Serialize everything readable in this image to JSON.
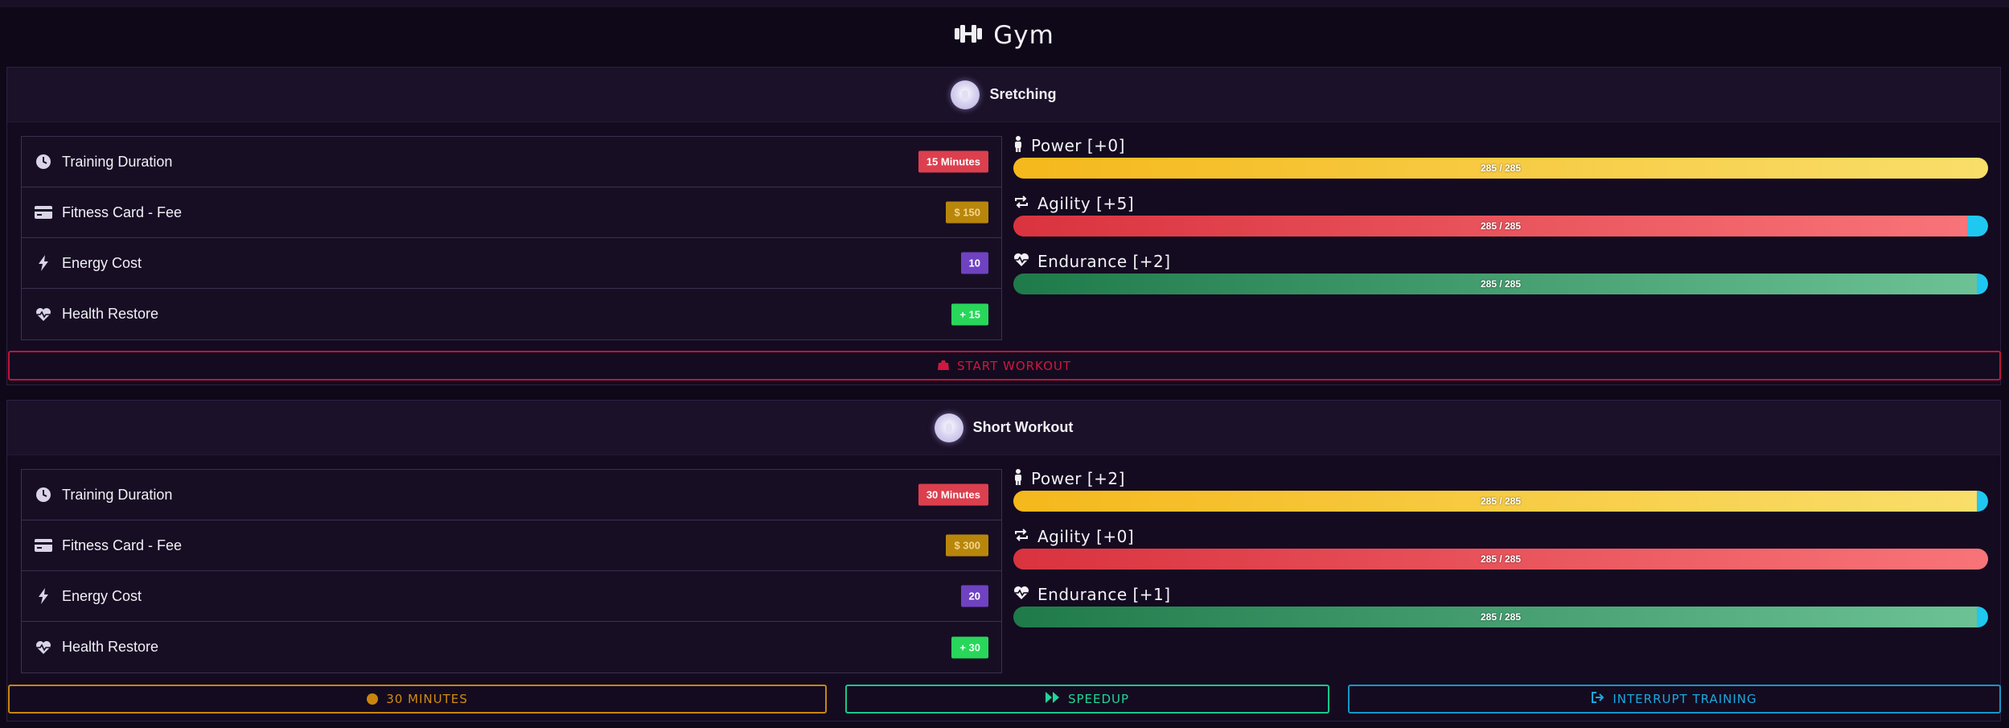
{
  "page": {
    "title": "Gym"
  },
  "sections": [
    {
      "name": "Sretching",
      "info": [
        {
          "label": "Training Duration",
          "value": "15 Minutes",
          "icon": "clock-icon",
          "color": "#dc3f4d"
        },
        {
          "label": "Fitness Card - Fee",
          "value": "$ 150",
          "icon": "credit-card-icon",
          "color": "#b8860b"
        },
        {
          "label": "Energy Cost",
          "value": "10",
          "icon": "bolt-icon",
          "color": "#6f42c1"
        },
        {
          "label": "Health Restore",
          "value": "+ 15",
          "icon": "heart-pulse-icon",
          "color": "#28d65a"
        }
      ],
      "stats": [
        {
          "label": "Power [+0]",
          "value": "285 / 285",
          "icon": "person-icon",
          "fill": 1.0,
          "bonus": 0.0
        },
        {
          "label": "Agility [+5]",
          "value": "285 / 285",
          "icon": "repeat-icon",
          "fill": 0.98,
          "bonus": 0.02
        },
        {
          "label": "Endurance [+2]",
          "value": "285 / 285",
          "icon": "heart-pulse-icon",
          "fill": 0.99,
          "bonus": 0.01
        }
      ],
      "action": {
        "label": "START WORKOUT",
        "icon": "weight-icon"
      }
    },
    {
      "name": "Short Workout",
      "info": [
        {
          "label": "Training Duration",
          "value": "30 Minutes",
          "icon": "clock-icon",
          "color": "#dc3f4d"
        },
        {
          "label": "Fitness Card - Fee",
          "value": "$ 300",
          "icon": "credit-card-icon",
          "color": "#b8860b"
        },
        {
          "label": "Energy Cost",
          "value": "20",
          "icon": "bolt-icon",
          "color": "#6f42c1"
        },
        {
          "label": "Health Restore",
          "value": "+ 30",
          "icon": "heart-pulse-icon",
          "color": "#28d65a"
        }
      ],
      "stats": [
        {
          "label": "Power [+2]",
          "value": "285 / 285",
          "icon": "person-icon",
          "fill": 0.99,
          "bonus": 0.01
        },
        {
          "label": "Agility [+0]",
          "value": "285 / 285",
          "icon": "repeat-icon",
          "fill": 1.0,
          "bonus": 0.0
        },
        {
          "label": "Endurance [+1]",
          "value": "285 / 285",
          "icon": "heart-pulse-icon",
          "fill": 0.99,
          "bonus": 0.01
        }
      ]
    }
  ],
  "buttons": {
    "timer": "30 MINUTES",
    "speedup": "SPEEDUP",
    "interrupt": "INTERRUPT TRAINING"
  }
}
